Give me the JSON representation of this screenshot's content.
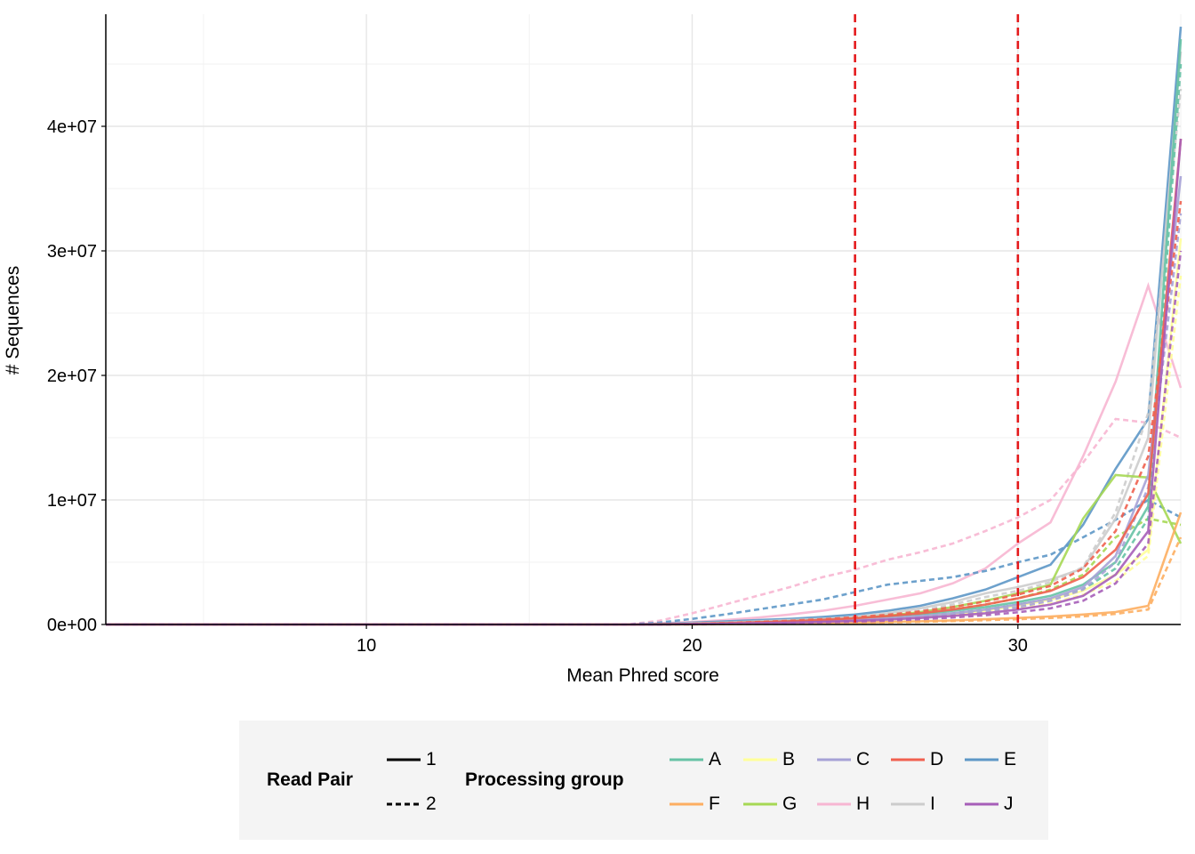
{
  "chart_data": {
    "type": "line",
    "title": "",
    "xlabel": "Mean Phred score",
    "ylabel": "# Sequences",
    "xlim": [
      2,
      35
    ],
    "ylim": [
      0,
      49000000
    ],
    "x_ticks": [
      10,
      20,
      30
    ],
    "x_tick_labels": [
      "10",
      "20",
      "30"
    ],
    "y_ticks": [
      0,
      10000000,
      20000000,
      30000000,
      40000000
    ],
    "y_tick_labels": [
      "0e+00",
      "1e+07",
      "2e+07",
      "3e+07",
      "4e+07"
    ],
    "grid": true,
    "reference_lines": {
      "x": [
        25,
        30
      ],
      "color": "#e41a1c",
      "style": "dashed"
    },
    "read_pair_legend": {
      "title": "Read Pair",
      "items": [
        {
          "label": "1",
          "style": "solid"
        },
        {
          "label": "2",
          "style": "dashed"
        }
      ]
    },
    "group_legend": {
      "title": "Processing group",
      "items": [
        {
          "label": "A",
          "color": "#66c2a5"
        },
        {
          "label": "B",
          "color": "#ffff99"
        },
        {
          "label": "C",
          "color": "#a6a2d6"
        },
        {
          "label": "D",
          "color": "#f0604f"
        },
        {
          "label": "E",
          "color": "#5d97c6"
        },
        {
          "label": "F",
          "color": "#fdae61"
        },
        {
          "label": "G",
          "color": "#a6d854"
        },
        {
          "label": "H",
          "color": "#f7b6d2"
        },
        {
          "label": "I",
          "color": "#cccccc"
        },
        {
          "label": "J",
          "color": "#a65eb8"
        }
      ]
    },
    "x": [
      2,
      3,
      4,
      5,
      6,
      7,
      8,
      9,
      10,
      11,
      12,
      13,
      14,
      15,
      16,
      17,
      18,
      19,
      20,
      21,
      22,
      23,
      24,
      25,
      26,
      27,
      28,
      29,
      30,
      31,
      32,
      33,
      34,
      35
    ],
    "series": [
      {
        "group": "H",
        "pair": "2",
        "values": [
          0,
          0,
          0,
          0,
          0,
          0,
          0,
          0,
          0,
          0,
          0,
          0,
          0,
          0,
          0,
          0,
          0,
          300000,
          900000,
          1600000,
          2300000,
          3000000,
          3800000,
          4400000,
          5200000,
          5800000,
          6500000,
          7500000,
          8600000,
          10000000,
          13000000,
          16500000,
          16200000,
          15000000
        ]
      },
      {
        "group": "H",
        "pair": "1",
        "values": [
          0,
          0,
          0,
          0,
          0,
          0,
          0,
          0,
          0,
          0,
          0,
          0,
          0,
          0,
          0,
          0,
          0,
          100000,
          200000,
          350000,
          550000,
          800000,
          1100000,
          1500000,
          2000000,
          2500000,
          3300000,
          4500000,
          6500000,
          8200000,
          13500000,
          19500000,
          27200000,
          19000000
        ]
      },
      {
        "group": "E",
        "pair": "2",
        "values": [
          0,
          0,
          0,
          0,
          0,
          0,
          0,
          0,
          0,
          0,
          0,
          0,
          0,
          0,
          0,
          0,
          0,
          150000,
          450000,
          800000,
          1200000,
          1600000,
          2000000,
          2600000,
          3200000,
          3500000,
          3800000,
          4300000,
          5000000,
          5600000,
          7000000,
          8400000,
          10000000,
          8600000
        ]
      },
      {
        "group": "E",
        "pair": "1",
        "values": [
          0,
          0,
          0,
          0,
          0,
          0,
          0,
          0,
          0,
          0,
          0,
          0,
          0,
          0,
          0,
          0,
          0,
          50000,
          150000,
          250000,
          350000,
          450000,
          600000,
          800000,
          1100000,
          1500000,
          2100000,
          2800000,
          3800000,
          4800000,
          8000000,
          12500000,
          16500000,
          48000000
        ]
      },
      {
        "group": "I",
        "pair": "1",
        "values": [
          0,
          0,
          0,
          0,
          0,
          0,
          0,
          0,
          0,
          0,
          0,
          0,
          0,
          0,
          0,
          0,
          0,
          30000,
          100000,
          150000,
          250000,
          350000,
          450000,
          600000,
          900000,
          1300000,
          1800000,
          2500000,
          3000000,
          3600000,
          4500000,
          8500000,
          15000000,
          46000000
        ]
      },
      {
        "group": "I",
        "pair": "2",
        "values": [
          0,
          0,
          0,
          0,
          0,
          0,
          0,
          0,
          0,
          0,
          0,
          0,
          0,
          0,
          0,
          0,
          0,
          30000,
          80000,
          140000,
          200000,
          300000,
          400000,
          550000,
          800000,
          1100000,
          1600000,
          2200000,
          2700000,
          3400000,
          4600000,
          9000000,
          17000000,
          43000000
        ]
      },
      {
        "group": "G",
        "pair": "1",
        "values": [
          0,
          0,
          0,
          0,
          0,
          0,
          0,
          0,
          0,
          0,
          0,
          0,
          0,
          0,
          0,
          0,
          0,
          20000,
          50000,
          100000,
          150000,
          250000,
          350000,
          500000,
          700000,
          1000000,
          1400000,
          1900000,
          2500000,
          3200000,
          8500000,
          12000000,
          11800000,
          6500000
        ]
      },
      {
        "group": "G",
        "pair": "2",
        "values": [
          0,
          0,
          0,
          0,
          0,
          0,
          0,
          0,
          0,
          0,
          0,
          0,
          0,
          0,
          0,
          0,
          0,
          20000,
          40000,
          80000,
          120000,
          200000,
          300000,
          400000,
          600000,
          850000,
          1200000,
          1600000,
          2100000,
          2800000,
          4000000,
          7000000,
          8500000,
          8000000
        ]
      },
      {
        "group": "A",
        "pair": "1",
        "values": [
          0,
          0,
          0,
          0,
          0,
          0,
          0,
          0,
          0,
          0,
          0,
          0,
          0,
          0,
          0,
          0,
          0,
          20000,
          50000,
          100000,
          150000,
          250000,
          350000,
          450000,
          600000,
          800000,
          1100000,
          1400000,
          1800000,
          2300000,
          3200000,
          5000000,
          9500000,
          47000000
        ]
      },
      {
        "group": "A",
        "pair": "2",
        "values": [
          0,
          0,
          0,
          0,
          0,
          0,
          0,
          0,
          0,
          0,
          0,
          0,
          0,
          0,
          0,
          0,
          0,
          10000,
          40000,
          80000,
          120000,
          200000,
          280000,
          380000,
          500000,
          700000,
          900000,
          1200000,
          1600000,
          2000000,
          2800000,
          4500000,
          8500000,
          45000000
        ]
      },
      {
        "group": "B",
        "pair": "1",
        "values": [
          0,
          0,
          0,
          0,
          0,
          0,
          0,
          0,
          0,
          0,
          0,
          0,
          0,
          0,
          0,
          0,
          0,
          10000,
          30000,
          60000,
          100000,
          160000,
          240000,
          340000,
          460000,
          620000,
          820000,
          1100000,
          1500000,
          2000000,
          2700000,
          4000000,
          6000000,
          31000000
        ]
      },
      {
        "group": "B",
        "pair": "2",
        "values": [
          0,
          0,
          0,
          0,
          0,
          0,
          0,
          0,
          0,
          0,
          0,
          0,
          0,
          0,
          0,
          0,
          0,
          10000,
          30000,
          50000,
          90000,
          140000,
          200000,
          290000,
          400000,
          540000,
          720000,
          950000,
          1300000,
          1700000,
          2400000,
          3500000,
          5500000,
          28000000
        ]
      },
      {
        "group": "C",
        "pair": "1",
        "values": [
          0,
          0,
          0,
          0,
          0,
          0,
          0,
          0,
          0,
          0,
          0,
          0,
          0,
          0,
          0,
          0,
          0,
          10000,
          40000,
          80000,
          130000,
          200000,
          280000,
          380000,
          500000,
          680000,
          900000,
          1200000,
          1600000,
          2100000,
          3000000,
          5500000,
          12000000,
          36000000
        ]
      },
      {
        "group": "C",
        "pair": "2",
        "values": [
          0,
          0,
          0,
          0,
          0,
          0,
          0,
          0,
          0,
          0,
          0,
          0,
          0,
          0,
          0,
          0,
          0,
          10000,
          30000,
          60000,
          100000,
          160000,
          230000,
          320000,
          440000,
          600000,
          800000,
          1050000,
          1400000,
          1900000,
          2800000,
          5000000,
          11000000,
          33000000
        ]
      },
      {
        "group": "D",
        "pair": "1",
        "values": [
          0,
          0,
          0,
          0,
          0,
          0,
          0,
          0,
          0,
          0,
          0,
          0,
          0,
          0,
          0,
          0,
          0,
          20000,
          50000,
          100000,
          170000,
          260000,
          370000,
          500000,
          680000,
          900000,
          1200000,
          1600000,
          2100000,
          2700000,
          3800000,
          6000000,
          10500000,
          39000000
        ]
      },
      {
        "group": "D",
        "pair": "2",
        "values": [
          0,
          0,
          0,
          0,
          0,
          0,
          0,
          0,
          0,
          0,
          0,
          0,
          0,
          0,
          0,
          0,
          0,
          20000,
          60000,
          120000,
          200000,
          300000,
          420000,
          580000,
          780000,
          1050000,
          1400000,
          1850000,
          2400000,
          3100000,
          4500000,
          7500000,
          13500000,
          34000000
        ]
      },
      {
        "group": "F",
        "pair": "1",
        "values": [
          0,
          0,
          0,
          0,
          0,
          0,
          0,
          0,
          0,
          0,
          0,
          0,
          0,
          0,
          0,
          0,
          0,
          5000,
          15000,
          30000,
          50000,
          80000,
          110000,
          150000,
          200000,
          260000,
          330000,
          420000,
          520000,
          640000,
          800000,
          1000000,
          1500000,
          9000000
        ]
      },
      {
        "group": "F",
        "pair": "2",
        "values": [
          0,
          0,
          0,
          0,
          0,
          0,
          0,
          0,
          0,
          0,
          0,
          0,
          0,
          0,
          0,
          0,
          0,
          5000,
          10000,
          20000,
          40000,
          60000,
          90000,
          120000,
          160000,
          210000,
          270000,
          340000,
          420000,
          520000,
          650000,
          850000,
          1200000,
          7000000
        ]
      },
      {
        "group": "J",
        "pair": "1",
        "values": [
          0,
          0,
          0,
          0,
          0,
          0,
          0,
          0,
          0,
          0,
          0,
          0,
          0,
          0,
          0,
          0,
          0,
          10000,
          30000,
          60000,
          100000,
          150000,
          210000,
          290000,
          390000,
          520000,
          690000,
          900000,
          1200000,
          1600000,
          2300000,
          4000000,
          7500000,
          39000000
        ]
      },
      {
        "group": "J",
        "pair": "2",
        "values": [
          0,
          0,
          0,
          0,
          0,
          0,
          0,
          0,
          0,
          0,
          0,
          0,
          0,
          0,
          0,
          0,
          0,
          10000,
          25000,
          50000,
          80000,
          120000,
          170000,
          230000,
          310000,
          420000,
          560000,
          740000,
          980000,
          1300000,
          1900000,
          3300000,
          6500000,
          30000000
        ]
      }
    ]
  }
}
